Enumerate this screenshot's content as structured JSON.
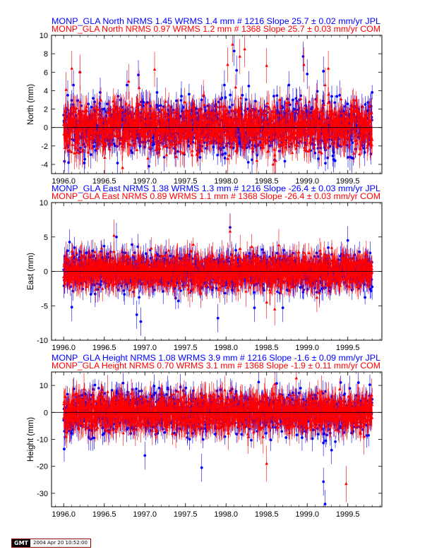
{
  "colors": {
    "series1": "#0000ff",
    "series2": "#ff0000",
    "axis": "#000000"
  },
  "stamp": {
    "logo": "GMT",
    "text": "2004 Apr 20 10:52:00"
  },
  "chart_data": [
    {
      "type": "scatter",
      "title_lines": [
        "MONP_GLA North NRMS 1.45 WRMS  1.4 mm # 1216 Slope   25.7 ±  0.02 mm/yr JPL",
        "MONP_GLA North NRMS 0.97 WRMS  1.2 mm # 1368 Slope   25.7 ±  0.03 mm/yr COM"
      ],
      "ylabel": "North (mm)",
      "xlabel": "",
      "xlim": [
        1995.85,
        1999.92
      ],
      "ylim": [
        -5,
        10
      ],
      "xticks": [
        1996.0,
        1996.5,
        1997.0,
        1997.5,
        1998.0,
        1998.5,
        1999.0,
        1999.5
      ],
      "xtick_labels": [
        "1996.0",
        "1996.5",
        "1997.0",
        "1997.5",
        "1998.0",
        "1998.5",
        "1999.0",
        "1999.5"
      ],
      "yticks": [
        -4,
        -2,
        0,
        2,
        4,
        6,
        8,
        10
      ],
      "ytick_labels": [
        "-4",
        "-2",
        "0",
        "2",
        "4",
        "6",
        "8",
        "10"
      ],
      "x_range": [
        1996.0,
        1999.8
      ],
      "series": [
        {
          "name": "JPL",
          "color": "#0000ff",
          "marker": "circle",
          "count": 1216,
          "scatter": 1.4,
          "err": 1.1,
          "peaks": [
            [
              1996.05,
              3.5
            ],
            [
              1996.12,
              4.6
            ],
            [
              1996.2,
              6.0
            ],
            [
              1996.45,
              3.8
            ],
            [
              1996.78,
              4.6
            ],
            [
              1996.92,
              5.7
            ],
            [
              1997.15,
              3.8
            ],
            [
              1997.45,
              3.4
            ],
            [
              1997.7,
              3.0
            ],
            [
              1997.98,
              4.6
            ],
            [
              1998.1,
              8.3
            ],
            [
              1998.13,
              6.2
            ],
            [
              1998.28,
              4.5
            ],
            [
              1998.95,
              7.7
            ],
            [
              1999.0,
              5.8
            ],
            [
              1999.2,
              6.1
            ],
            [
              1999.4,
              3.5
            ],
            [
              1998.32,
              -3.5
            ],
            [
              1997.05,
              -4.2
            ],
            [
              1999.55,
              -3.3
            ]
          ]
        },
        {
          "name": "COM",
          "color": "#ff0000",
          "marker": "triangle",
          "count": 1368,
          "scatter": 1.2,
          "err": 1.3,
          "peaks": [
            [
              1996.03,
              4.1
            ],
            [
              1996.1,
              6.4
            ],
            [
              1996.2,
              6.0
            ],
            [
              1996.8,
              5.0
            ],
            [
              1996.93,
              4.3
            ],
            [
              1997.12,
              6.3
            ],
            [
              1998.02,
              6.8
            ],
            [
              1998.08,
              9.0
            ],
            [
              1998.17,
              7.7
            ],
            [
              1998.23,
              8.5
            ],
            [
              1998.5,
              6.7
            ],
            [
              1998.96,
              6.8
            ],
            [
              1999.22,
              4.6
            ],
            [
              1999.26,
              6.4
            ],
            [
              1998.58,
              -4.0
            ],
            [
              1998.38,
              -3.6
            ],
            [
              1998.6,
              -3.0
            ]
          ]
        }
      ]
    },
    {
      "type": "scatter",
      "title_lines": [
        "MONP_GLA East NRMS 1.38 WRMS  1.3 mm # 1216 Slope  -26.4 ±  0.03 mm/yr JPL",
        "MONP_GLA East NRMS 0.89 WRMS  1.1 mm # 1368 Slope  -26.4 ±  0.03 mm/yr COM"
      ],
      "ylabel": "East (mm)",
      "xlabel": "",
      "xlim": [
        1995.85,
        1999.92
      ],
      "ylim": [
        -10,
        10
      ],
      "xticks": [
        1996.0,
        1996.5,
        1997.0,
        1997.5,
        1998.0,
        1998.5,
        1999.0,
        1999.5
      ],
      "xtick_labels": [
        "1996.0",
        "1996.5",
        "1997.0",
        "1997.5",
        "1998.0",
        "1998.5",
        "1999.0",
        "1999.5"
      ],
      "yticks": [
        -10,
        -5,
        0,
        5,
        10
      ],
      "ytick_labels": [
        "-10",
        "-5",
        "0",
        "5",
        "10"
      ],
      "x_range": [
        1996.0,
        1999.8
      ],
      "series": [
        {
          "name": "JPL",
          "color": "#0000ff",
          "marker": "circle",
          "count": 1216,
          "scatter": 1.3,
          "err": 1.4,
          "peaks": [
            [
              1996.1,
              -5.2
            ],
            [
              1996.9,
              -6.3
            ],
            [
              1996.95,
              -7.3
            ],
            [
              1997.9,
              -6.8
            ],
            [
              1998.05,
              6.4
            ],
            [
              1998.35,
              -5.3
            ],
            [
              1998.7,
              -5.3
            ],
            [
              1996.65,
              5.0
            ],
            [
              1999.5,
              4.5
            ]
          ]
        },
        {
          "name": "COM",
          "color": "#ff0000",
          "marker": "triangle",
          "count": 1368,
          "scatter": 1.1,
          "err": 1.6,
          "peaks": [
            [
              1996.62,
              5.2
            ],
            [
              1998.05,
              5.8
            ],
            [
              1998.6,
              -5.5
            ],
            [
              1998.65,
              3.8
            ],
            [
              1998.5,
              -4.5
            ]
          ]
        }
      ]
    },
    {
      "type": "scatter",
      "title_lines": [
        "MONP_GLA Height NRMS 1.08 WRMS  3.9 mm # 1216 Slope   -1.6 ±  0.09 mm/yr JPL",
        "MONP_GLA Height NRMS 0.70 WRMS  3.1 mm # 1368 Slope   -1.9 ±  0.11 mm/yr COM"
      ],
      "ylabel": "Height (mm)",
      "xlabel": "",
      "xlim": [
        1995.85,
        1999.92
      ],
      "ylim": [
        -35,
        15
      ],
      "xticks": [
        1996.0,
        1996.5,
        1997.0,
        1997.5,
        1998.0,
        1998.5,
        1999.0,
        1999.5
      ],
      "xtick_labels": [
        "1996.0",
        "1996.5",
        "1997.0",
        "1997.5",
        "1998.0",
        "1998.5",
        "1999.0",
        "1999.5"
      ],
      "yticks": [
        -30,
        -20,
        -10,
        0,
        10
      ],
      "ytick_labels": [
        "-30",
        "-20",
        "-10",
        "0",
        "10"
      ],
      "x_range": [
        1996.0,
        1999.8
      ],
      "series": [
        {
          "name": "JPL",
          "color": "#0000ff",
          "marker": "circle",
          "count": 1216,
          "scatter": 3.9,
          "err": 3.5,
          "peaks": [
            [
              1997.7,
              -20.5
            ],
            [
              1999.2,
              -25.7
            ],
            [
              1999.22,
              -34.0
            ],
            [
              1999.3,
              -14.0
            ],
            [
              1997.0,
              -16.0
            ]
          ]
        },
        {
          "name": "COM",
          "color": "#ff0000",
          "marker": "triangle",
          "count": 1368,
          "scatter": 3.1,
          "err": 4.5,
          "peaks": [
            [
              1999.48,
              -26.5
            ],
            [
              1998.6,
              10.5
            ],
            [
              1998.5,
              -19.0
            ],
            [
              1999.7,
              -9.0
            ]
          ]
        }
      ]
    }
  ]
}
